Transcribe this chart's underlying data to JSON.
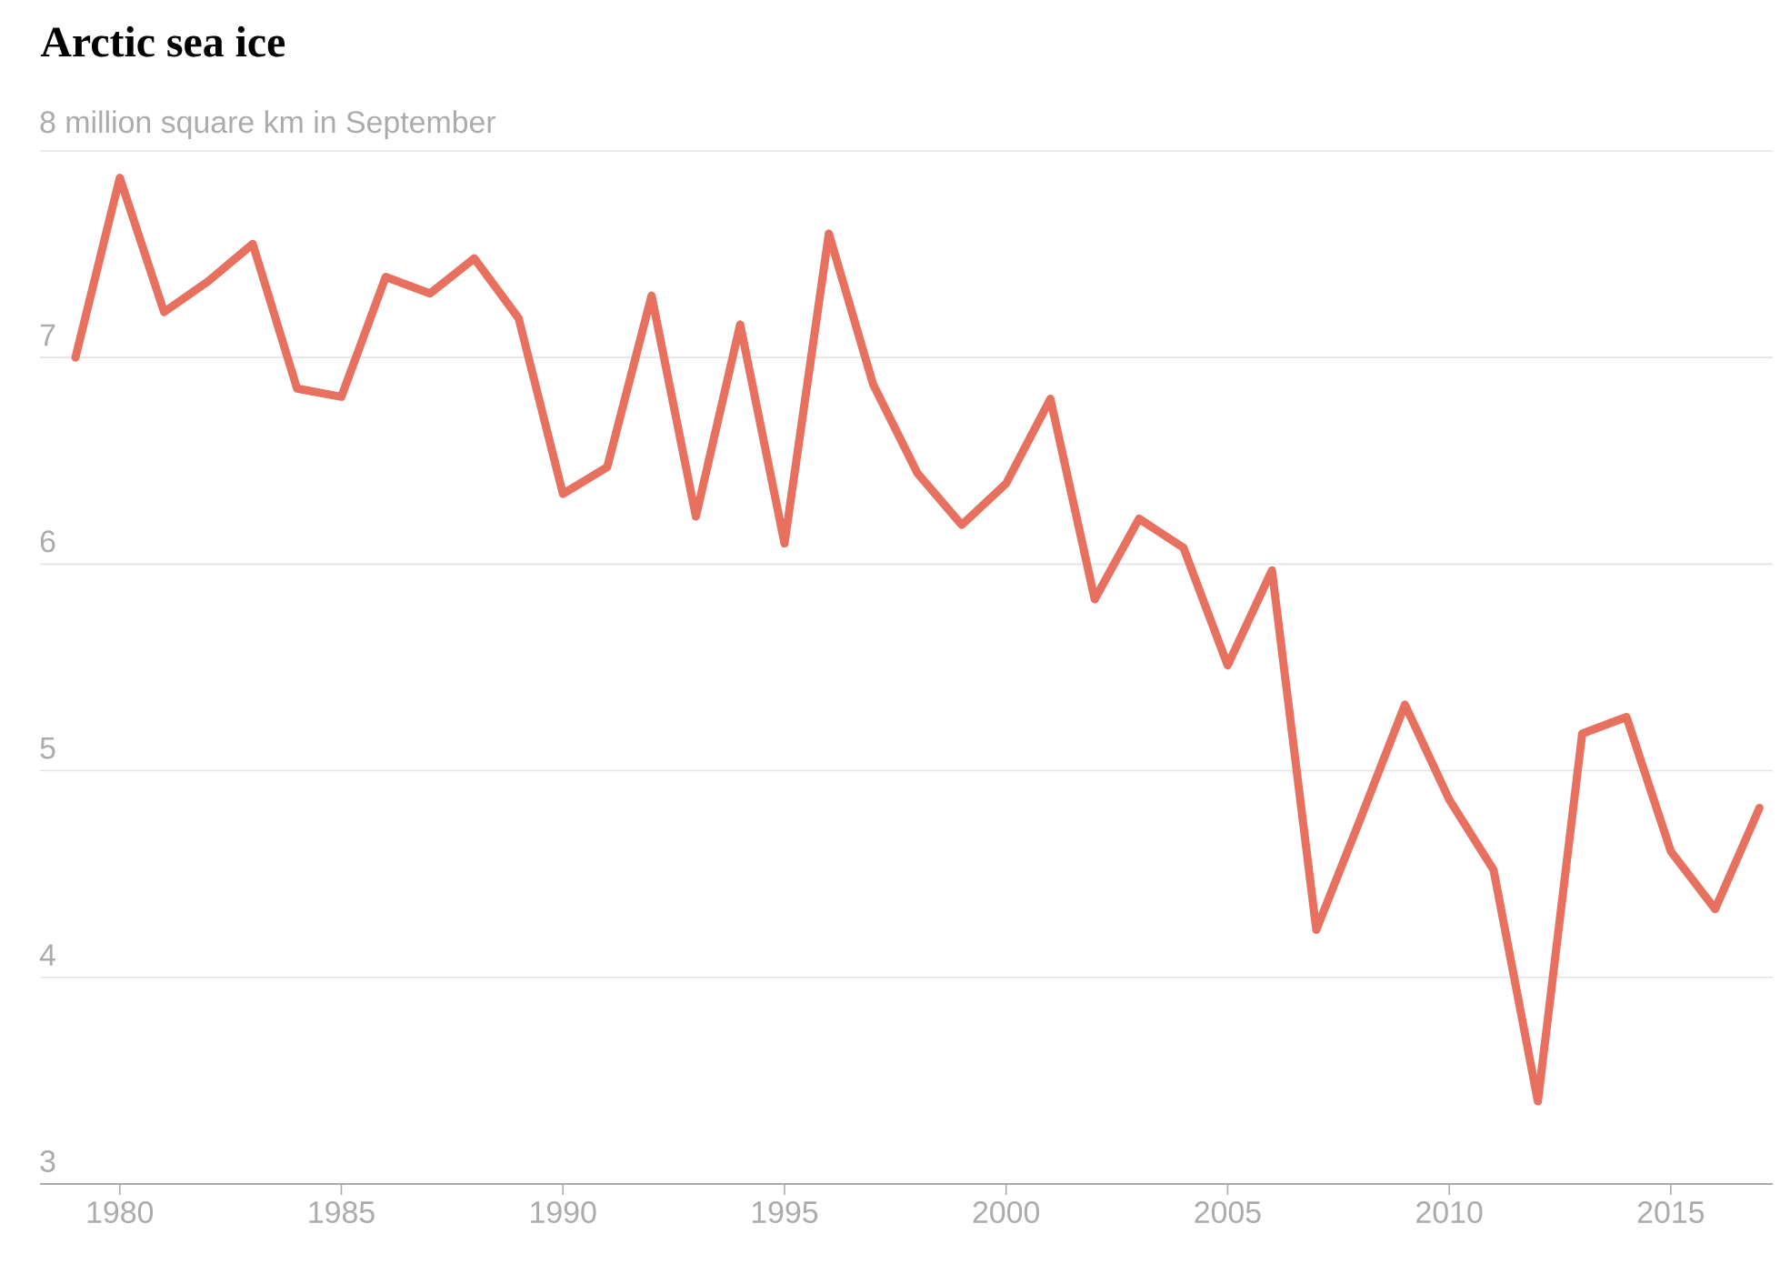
{
  "chart_data": {
    "type": "line",
    "title": "Arctic sea ice",
    "x": [
      1979,
      1980,
      1981,
      1982,
      1983,
      1984,
      1985,
      1986,
      1987,
      1988,
      1989,
      1990,
      1991,
      1992,
      1993,
      1994,
      1995,
      1996,
      1997,
      1998,
      1999,
      2000,
      2001,
      2002,
      2003,
      2004,
      2005,
      2006,
      2007,
      2008,
      2009,
      2010,
      2011,
      2012,
      2013,
      2014,
      2015,
      2016,
      2017
    ],
    "values": [
      7.0,
      7.87,
      7.22,
      7.37,
      7.55,
      6.85,
      6.81,
      7.39,
      7.31,
      7.48,
      7.19,
      6.34,
      6.47,
      7.3,
      6.23,
      7.16,
      6.1,
      7.6,
      6.87,
      6.44,
      6.19,
      6.39,
      6.8,
      5.83,
      6.22,
      6.08,
      5.51,
      5.97,
      4.23,
      4.77,
      5.32,
      4.86,
      4.52,
      3.4,
      5.18,
      5.26,
      4.61,
      4.33,
      4.82
    ],
    "color": "#e8705e",
    "xlim": [
      1978.2,
      2017.3
    ],
    "ylim": [
      3,
      8
    ],
    "xticks": [
      1980,
      1985,
      1990,
      1995,
      2000,
      2005,
      2010,
      2015
    ],
    "yticks": [
      3,
      4,
      5,
      6,
      7,
      {
        "value": 8,
        "label": "8 million square km in September"
      }
    ],
    "grid": "y"
  }
}
